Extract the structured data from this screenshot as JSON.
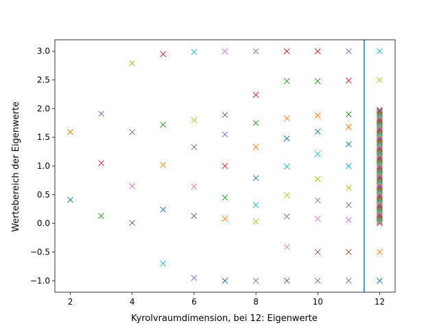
{
  "chart_data": {
    "type": "scatter",
    "title": "",
    "xlabel": "Kyrolvraumdimension, bei 12: Eigenwerte",
    "ylabel": "Wertebereich der Eigenwerte",
    "xlim": [
      1.5,
      12.5
    ],
    "ylim": [
      -1.2,
      3.2
    ],
    "xticks": [
      2,
      4,
      6,
      8,
      10,
      12
    ],
    "yticks": [
      -1.0,
      -0.5,
      0.0,
      0.5,
      1.0,
      1.5,
      2.0,
      2.5,
      3.0
    ],
    "xtick_labels": [
      "2",
      "4",
      "6",
      "8",
      "10",
      "12"
    ],
    "ytick_labels": [
      "−1.0",
      "−0.5",
      "0.0",
      "0.5",
      "1.0",
      "1.5",
      "2.0",
      "2.5",
      "3.0"
    ],
    "marker": "x",
    "grid": false,
    "legend": "none",
    "colors": [
      "#1f77b4",
      "#ff7f0e",
      "#2ca02c",
      "#d62728",
      "#9467bd",
      "#8c564b",
      "#e377c2",
      "#7f7f7f",
      "#bcbd22",
      "#17becf"
    ],
    "vline": {
      "x": 11.5,
      "color": "#1f77b4"
    },
    "series": [
      {
        "x": 2,
        "values": [
          0.41,
          1.59
        ]
      },
      {
        "x": 3,
        "values": [
          0.13,
          1.05,
          1.91
        ]
      },
      {
        "x": 4,
        "values": [
          0.01,
          0.65,
          1.59,
          2.79
        ]
      },
      {
        "x": 5,
        "values": [
          -0.7,
          0.24,
          1.02,
          1.72,
          2.95
        ]
      },
      {
        "x": 6,
        "values": [
          -0.95,
          0.13,
          0.64,
          1.33,
          1.8,
          2.99
        ]
      },
      {
        "x": 7,
        "values": [
          -1.0,
          0.08,
          0.45,
          1.0,
          1.55,
          1.89,
          3.0
        ]
      },
      {
        "x": 8,
        "values": [
          -1.0,
          0.03,
          0.32,
          0.79,
          1.33,
          1.75,
          2.24,
          3.0
        ]
      },
      {
        "x": 9,
        "values": [
          -1.0,
          -0.41,
          0.12,
          0.49,
          0.99,
          1.48,
          1.83,
          2.48,
          3.0
        ]
      },
      {
        "x": 10,
        "values": [
          -1.0,
          -0.5,
          0.08,
          0.4,
          0.77,
          1.21,
          1.6,
          1.88,
          2.48,
          3.0
        ]
      },
      {
        "x": 11,
        "values": [
          -1.0,
          -0.5,
          0.06,
          0.32,
          0.62,
          1.0,
          1.38,
          1.68,
          1.9,
          2.49,
          3.0
        ]
      }
    ],
    "eigenvalues_at_12": {
      "x": 12,
      "values": [
        -1.0,
        -0.5,
        2.5,
        3.0
      ],
      "dense_band": {
        "from": 0.0,
        "to": 1.98,
        "count": 120
      }
    }
  }
}
